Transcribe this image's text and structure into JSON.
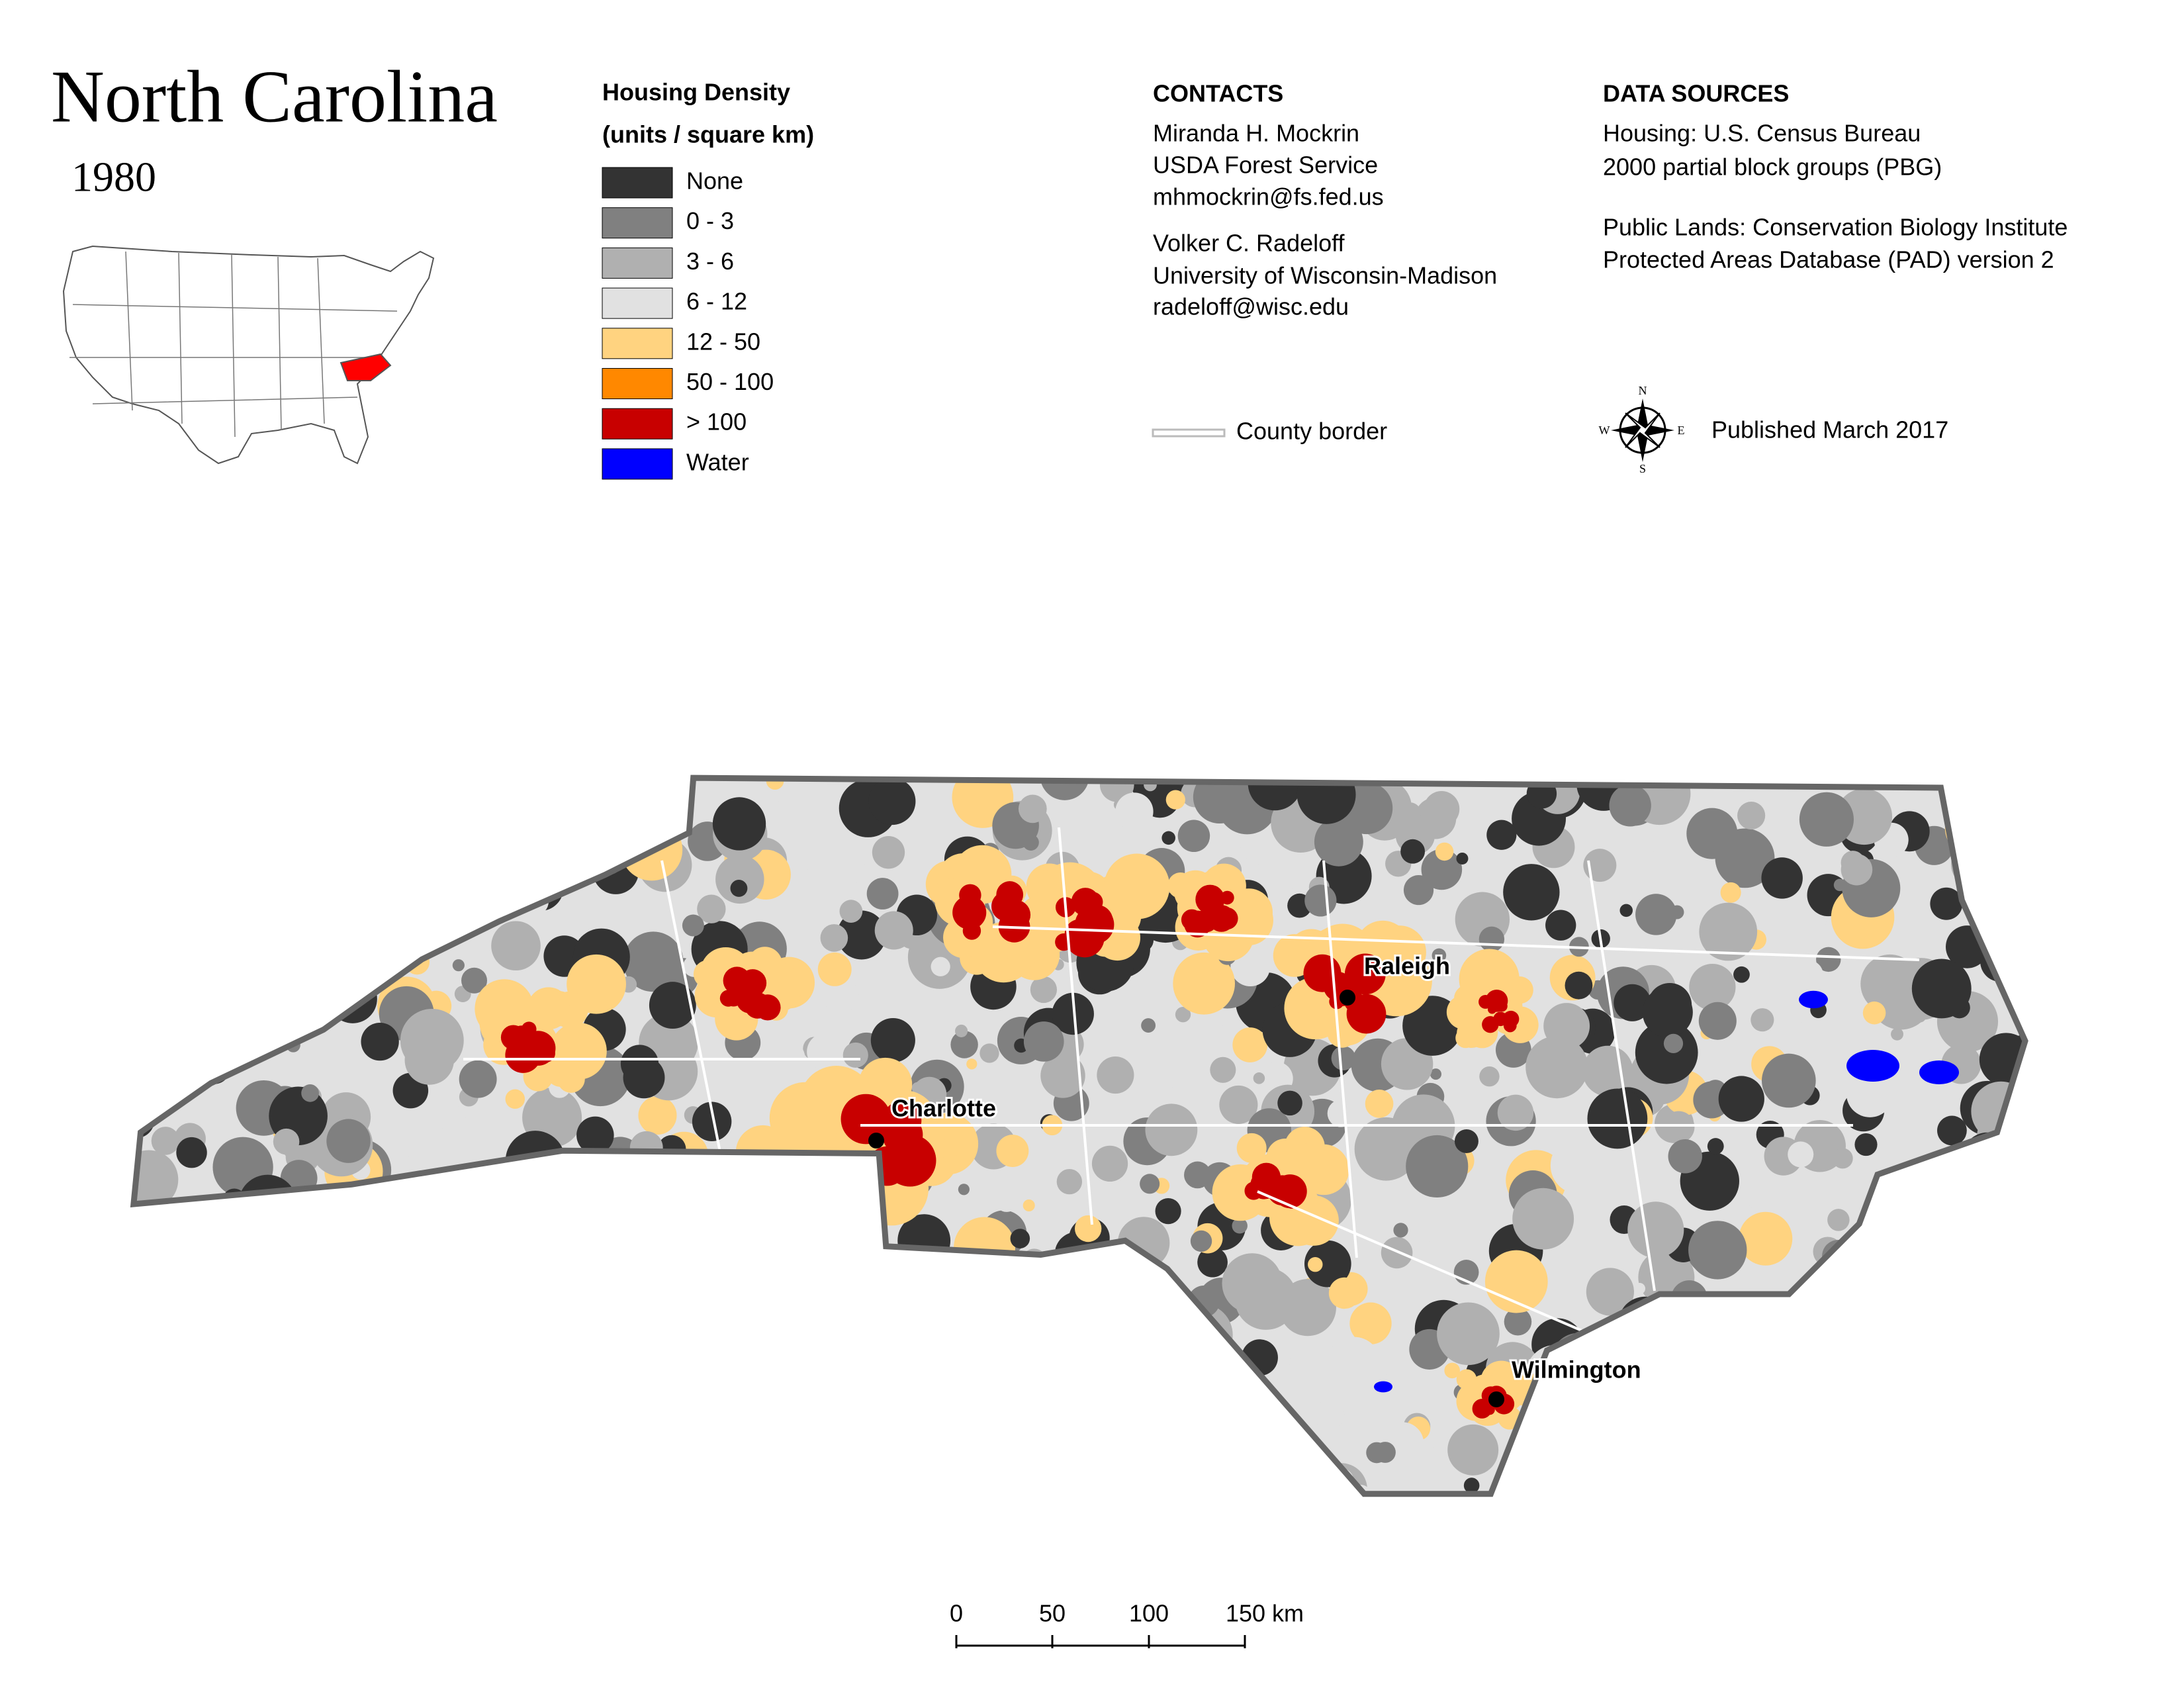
{
  "header": {
    "title": "North Carolina",
    "year": "1980"
  },
  "legend": {
    "title_line1": "Housing Density",
    "title_line2": "(units / square km)",
    "items": [
      {
        "label": "None",
        "color": "#333333"
      },
      {
        "label": "0 - 3",
        "color": "#808080"
      },
      {
        "label": "3 - 6",
        "color": "#b0b0b0"
      },
      {
        "label": "6 - 12",
        "color": "#e1e1e1"
      },
      {
        "label": "12 - 50",
        "color": "#ffd380"
      },
      {
        "label": "50 - 100",
        "color": "#ff8800"
      },
      {
        "label": "> 100",
        "color": "#c80000"
      },
      {
        "label": "Water",
        "color": "#0000ff"
      }
    ]
  },
  "contacts": {
    "heading": "CONTACTS",
    "people": [
      {
        "name": "Miranda H. Mockrin",
        "org": "USDA Forest Service",
        "email": "mhmockrin@fs.fed.us"
      },
      {
        "name": "Volker C. Radeloff",
        "org": "University of Wisconsin-Madison",
        "email": "radeloff@wisc.edu"
      }
    ]
  },
  "data_sources": {
    "heading": "DATA SOURCES",
    "lines": [
      "Housing: U.S. Census Bureau",
      "2000 partial block groups (PBG)",
      "Public Lands: Conservation Biology Institute",
      "Protected Areas Database (PAD) version 2"
    ]
  },
  "county_border": "County border",
  "compass": {
    "n": "N",
    "s": "S",
    "e": "E",
    "w": "W"
  },
  "published": "Published March 2017",
  "cities": [
    "Raleigh",
    "Charlotte",
    "Wilmington"
  ],
  "scale_bar": [
    "0",
    "50",
    "100",
    "150 km"
  ]
}
